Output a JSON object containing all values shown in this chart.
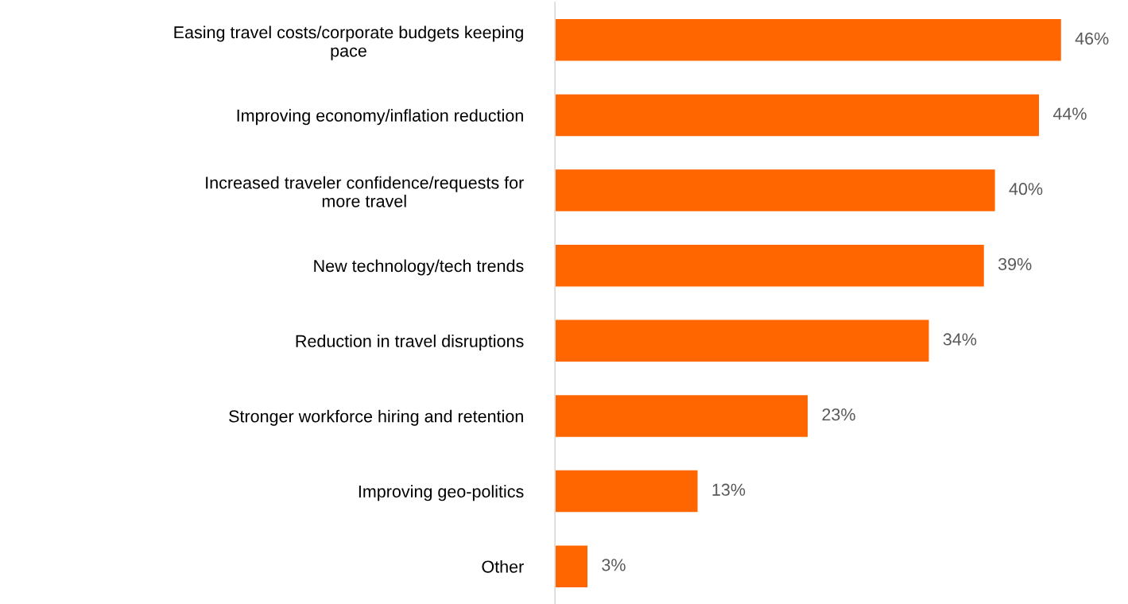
{
  "chart_data": {
    "type": "bar",
    "orientation": "horizontal",
    "categories": [
      "Easing travel costs/corporate budgets keeping\npace",
      "Improving economy/inflation reduction",
      "Increased traveler confidence/requests for\nmore travel",
      "New technology/tech trends",
      "Reduction in travel disruptions",
      "Stronger workforce hiring and retention",
      "Improving geo-politics",
      "Other"
    ],
    "values": [
      46,
      44,
      40,
      39,
      34,
      23,
      13,
      3
    ],
    "color": "#ff6600",
    "value_labels": [
      "46%",
      "44%",
      "40%",
      "39%",
      "34%",
      "23%",
      "13%",
      "3%"
    ],
    "tick_labels": "y",
    "grid": false,
    "legend": false
  }
}
